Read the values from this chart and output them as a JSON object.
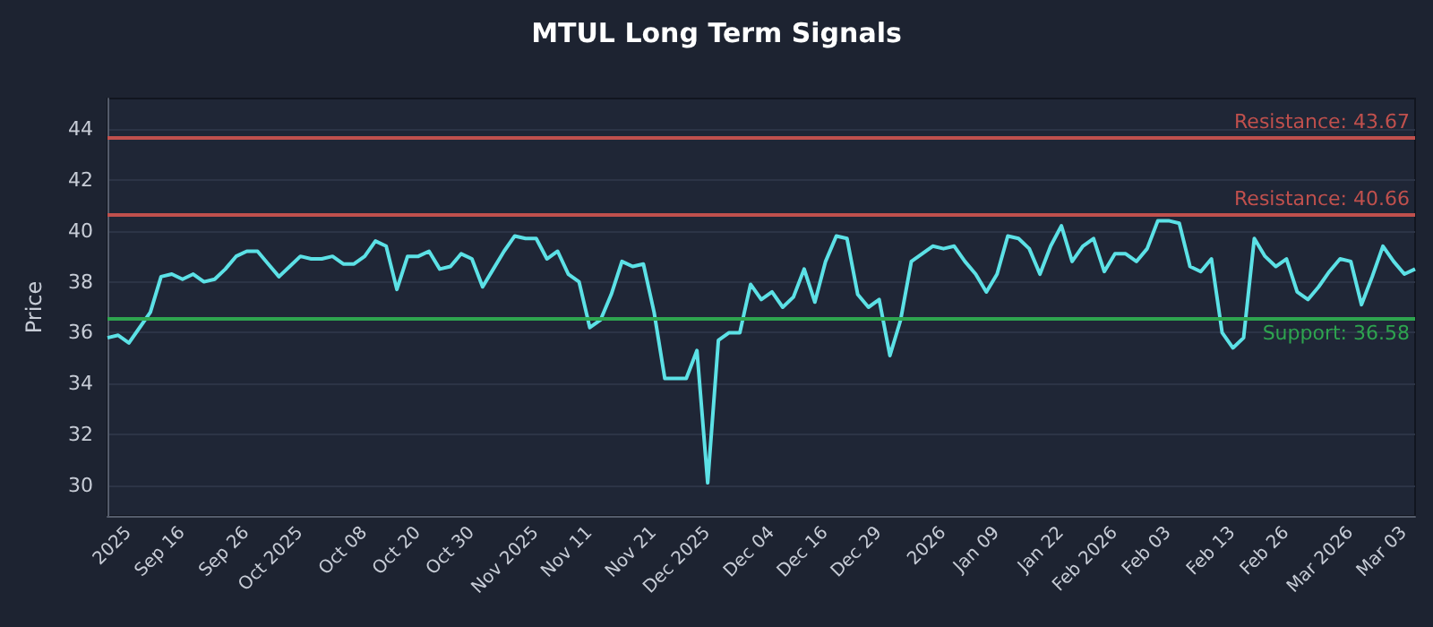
{
  "chart_data": {
    "type": "line",
    "title": "MTUL Long Term Signals",
    "ylabel": "Price",
    "categories": [
      null,
      null,
      "2025",
      null,
      null,
      null,
      null,
      "Sep 16",
      null,
      null,
      null,
      null,
      null,
      "Sep 26",
      null,
      null,
      null,
      null,
      "Oct 2025",
      null,
      null,
      null,
      null,
      null,
      "Oct 08",
      null,
      null,
      null,
      null,
      "Oct 20",
      null,
      null,
      null,
      null,
      "Oct 30",
      null,
      null,
      null,
      null,
      null,
      "Nov 2025",
      null,
      null,
      null,
      null,
      "Nov 11",
      null,
      null,
      null,
      null,
      null,
      "Nov 21",
      null,
      null,
      null,
      null,
      "Dec 2025",
      null,
      null,
      null,
      null,
      null,
      "Dec 04",
      null,
      null,
      null,
      null,
      "Dec 16",
      null,
      null,
      null,
      null,
      "Dec 29",
      null,
      null,
      null,
      null,
      null,
      "2026",
      null,
      null,
      null,
      null,
      "Jan 09",
      null,
      null,
      null,
      null,
      null,
      "Jan 22",
      null,
      null,
      null,
      null,
      "Feb 2026",
      null,
      null,
      null,
      null,
      "Feb 03",
      null,
      null,
      null,
      null,
      null,
      "Feb 13",
      null,
      null,
      null,
      null,
      "Feb 26",
      null,
      null,
      null,
      null,
      null,
      "Mar 2026",
      null,
      null,
      null,
      null,
      "Mar 03",
      null
    ],
    "series": [
      {
        "color": "#5ce1e6",
        "values": [
          35.8,
          35.9,
          35.6,
          36.2,
          36.8,
          38.2,
          38.3,
          38.1,
          38.3,
          38.0,
          38.1,
          38.5,
          39.0,
          39.2,
          39.2,
          38.7,
          38.2,
          38.6,
          39.0,
          38.9,
          38.9,
          39.0,
          38.7,
          38.7,
          39.0,
          39.6,
          39.4,
          37.7,
          39.0,
          39.0,
          39.2,
          38.5,
          38.6,
          39.1,
          38.9,
          37.8,
          38.5,
          39.2,
          39.8,
          39.7,
          39.7,
          38.9,
          39.2,
          38.3,
          38.0,
          36.2,
          36.5,
          37.5,
          38.8,
          38.6,
          38.7,
          36.8,
          34.2,
          34.2,
          34.2,
          35.3,
          30.1,
          35.7,
          36.0,
          36.0,
          37.9,
          37.3,
          37.6,
          37.0,
          37.4,
          38.5,
          37.2,
          38.8,
          39.8,
          39.7,
          37.5,
          37.0,
          37.3,
          35.1,
          36.5,
          38.8,
          39.1,
          39.4,
          39.3,
          39.4,
          38.8,
          38.3,
          37.6,
          38.3,
          39.8,
          39.7,
          39.3,
          38.3,
          39.4,
          40.2,
          38.8,
          39.4,
          39.7,
          38.4,
          39.1,
          39.1,
          38.8,
          39.3,
          40.4,
          40.4,
          40.3,
          38.6,
          38.4,
          38.9,
          36.0,
          35.4,
          35.8,
          39.7,
          39.0,
          38.6,
          38.9,
          37.6,
          37.3,
          37.8,
          38.4,
          38.9,
          38.8,
          37.1,
          38.2,
          39.4,
          38.8,
          38.3,
          38.5
        ]
      }
    ],
    "ylim": [
      28.8,
      45.2
    ],
    "yticks": [
      30,
      32,
      34,
      36,
      38,
      40,
      42,
      44
    ],
    "grid": "y",
    "marker": "none",
    "ref_lines": [
      {
        "axis": "y",
        "value": 43.67,
        "label": "Resistance: 43.67",
        "color": "#c0504d"
      },
      {
        "axis": "y",
        "value": 40.66,
        "label": "Resistance: 40.66",
        "color": "#c0504d"
      },
      {
        "axis": "y",
        "value": 36.58,
        "label": "Support: 36.58",
        "color": "#2ea44f"
      }
    ]
  }
}
